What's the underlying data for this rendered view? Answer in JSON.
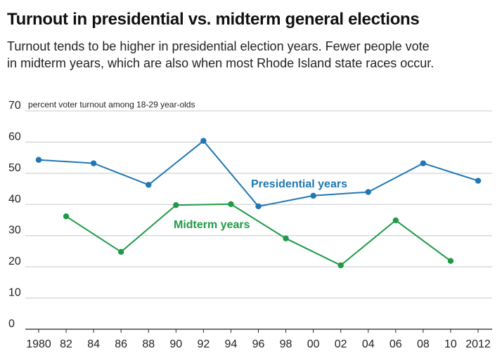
{
  "title": "Turnout in presidential vs. midterm general elections",
  "subtitle": [
    "Turnout tends to be higher in presidential election years. Fewer people vote",
    "in midterm years, which are also when most Rhode Island state races occur."
  ],
  "chart_data": {
    "type": "line",
    "ylabel": "percent voter turnout among 18-29 year-olds",
    "ylim": [
      0,
      70
    ],
    "yticks": [
      "0",
      "10",
      "20",
      "30",
      "40",
      "50",
      "60",
      "70"
    ],
    "xlim": [
      1980,
      2012
    ],
    "xticks": [
      {
        "year": 1980,
        "label": "1980"
      },
      {
        "year": 1982,
        "label": "82"
      },
      {
        "year": 1984,
        "label": "84"
      },
      {
        "year": 1986,
        "label": "86"
      },
      {
        "year": 1988,
        "label": "88"
      },
      {
        "year": 1990,
        "label": "90"
      },
      {
        "year": 1992,
        "label": "92"
      },
      {
        "year": 1994,
        "label": "94"
      },
      {
        "year": 1996,
        "label": "96"
      },
      {
        "year": 1998,
        "label": "98"
      },
      {
        "year": 2000,
        "label": "00"
      },
      {
        "year": 2002,
        "label": "02"
      },
      {
        "year": 2004,
        "label": "04"
      },
      {
        "year": 2006,
        "label": "06"
      },
      {
        "year": 2008,
        "label": "08"
      },
      {
        "year": 2010,
        "label": "10"
      },
      {
        "year": 2012,
        "label": "2012"
      }
    ],
    "grid": true,
    "series": [
      {
        "name": "Presidential years",
        "color": "#1f77b4",
        "x": [
          1980,
          1984,
          1988,
          1992,
          1996,
          2000,
          2004,
          2008,
          2012
        ],
        "y": [
          54.3,
          53.2,
          46.3,
          60.4,
          39.4,
          42.8,
          44.0,
          53.2,
          47.6
        ]
      },
      {
        "name": "Midterm years",
        "color": "#1f9a46",
        "x": [
          1982,
          1986,
          1990,
          1994,
          1998,
          2002,
          2006,
          2010
        ],
        "y": [
          36.2,
          24.8,
          39.8,
          40.1,
          29.1,
          20.5,
          34.9,
          21.9
        ]
      }
    ]
  }
}
